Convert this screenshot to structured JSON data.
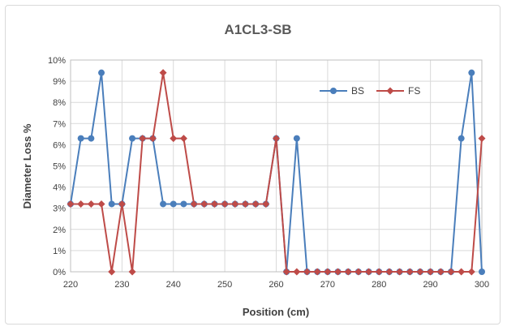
{
  "chart_data": {
    "type": "line",
    "title": "A1CL3-SB",
    "xlabel": "Position (cm)",
    "ylabel": "Diameter Loss %",
    "xlim": [
      220,
      300
    ],
    "ylim": [
      0,
      10
    ],
    "x_ticks": [
      "220",
      "230",
      "240",
      "250",
      "260",
      "270",
      "280",
      "290",
      "300"
    ],
    "y_ticks": [
      "0%",
      "1%",
      "2%",
      "3%",
      "4%",
      "5%",
      "6%",
      "7%",
      "8%",
      "9%",
      "10%"
    ],
    "grid": true,
    "legend_position": "top-right",
    "x": [
      220,
      222,
      224,
      226,
      228,
      230,
      232,
      234,
      236,
      238,
      240,
      242,
      244,
      246,
      248,
      250,
      252,
      254,
      256,
      258,
      260,
      262,
      264,
      266,
      268,
      270,
      272,
      274,
      276,
      278,
      280,
      282,
      284,
      286,
      288,
      290,
      292,
      294,
      296,
      298,
      300
    ],
    "series": [
      {
        "name": "BS",
        "color": "#4a7ebb",
        "marker": "circle",
        "values": [
          3.2,
          6.3,
          6.3,
          9.4,
          3.2,
          3.2,
          6.3,
          6.3,
          6.3,
          3.2,
          3.2,
          3.2,
          3.2,
          3.2,
          3.2,
          3.2,
          3.2,
          3.2,
          3.2,
          3.2,
          6.3,
          0,
          6.3,
          0,
          0,
          0,
          0,
          0,
          0,
          0,
          0,
          0,
          0,
          0,
          0,
          0,
          0,
          0,
          6.3,
          9.4,
          0
        ]
      },
      {
        "name": "FS",
        "color": "#be4b48",
        "marker": "diamond",
        "values": [
          3.2,
          3.2,
          3.2,
          3.2,
          0,
          3.2,
          0,
          6.3,
          6.3,
          9.4,
          6.3,
          6.3,
          3.2,
          3.2,
          3.2,
          3.2,
          3.2,
          3.2,
          3.2,
          3.2,
          6.3,
          0,
          0,
          0,
          0,
          0,
          0,
          0,
          0,
          0,
          0,
          0,
          0,
          0,
          0,
          0,
          0,
          0,
          0,
          0,
          6.3
        ]
      }
    ]
  }
}
